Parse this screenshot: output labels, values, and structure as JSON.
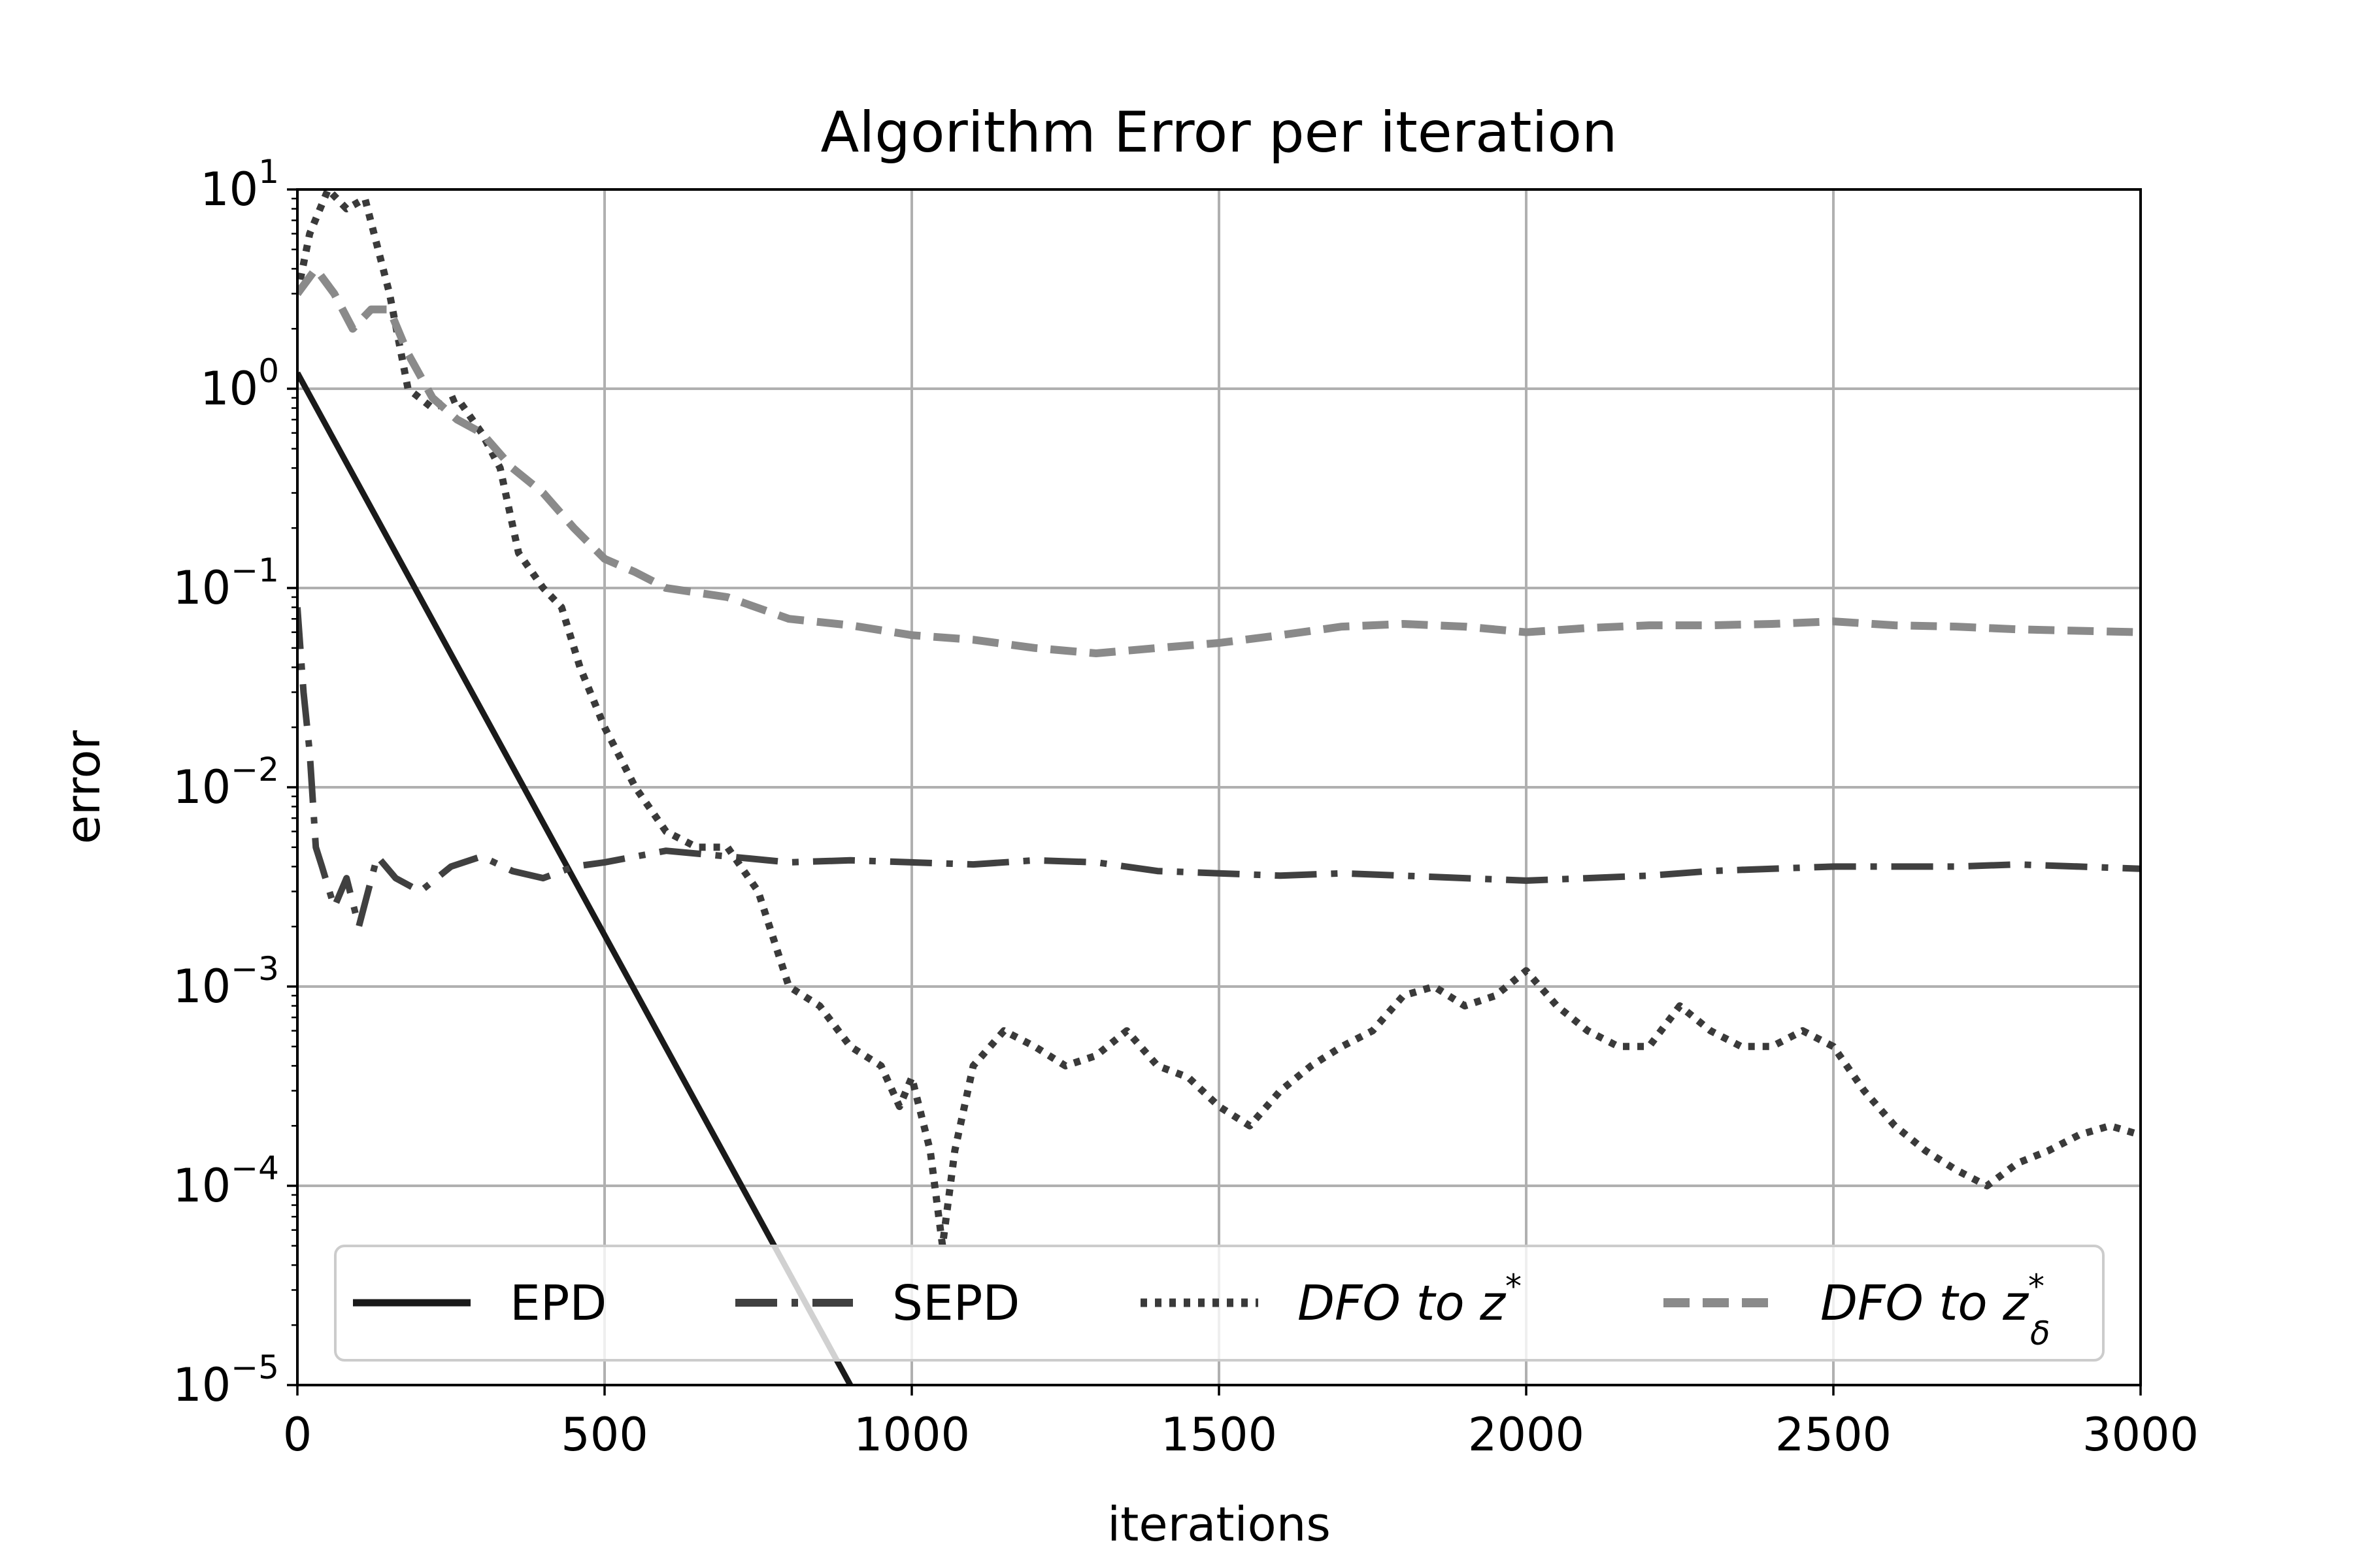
{
  "chart_data": {
    "type": "line",
    "title": "Algorithm Error per iteration",
    "xlabel": "iterations",
    "ylabel": "error",
    "xlim": [
      0,
      3000
    ],
    "ylim": [
      1e-05,
      10
    ],
    "yscale": "log",
    "grid": true,
    "legend_position": "bottom",
    "x_ticks": [
      "0",
      "500",
      "1000",
      "1500",
      "2000",
      "2500",
      "3000"
    ],
    "y_ticks": [
      {
        "base": "10",
        "exp": "1"
      },
      {
        "base": "10",
        "exp": "0"
      },
      {
        "base": "10",
        "exp": "−1"
      },
      {
        "base": "10",
        "exp": "−2"
      },
      {
        "base": "10",
        "exp": "−3"
      },
      {
        "base": "10",
        "exp": "−4"
      },
      {
        "base": "10",
        "exp": "−5"
      }
    ],
    "series": [
      {
        "name": "EPD",
        "style": "solid",
        "color": "#1a1a1a",
        "x": [
          0,
          900
        ],
        "y": [
          1.2,
          1e-05
        ]
      },
      {
        "name": "SEPD",
        "style": "dashdot",
        "color": "#404040",
        "x": [
          0,
          10,
          20,
          30,
          40,
          60,
          80,
          100,
          130,
          160,
          200,
          250,
          300,
          350,
          400,
          450,
          500,
          600,
          700,
          800,
          900,
          1000,
          1100,
          1200,
          1300,
          1400,
          1500,
          1600,
          1700,
          1800,
          1900,
          2000,
          2100,
          2200,
          2300,
          2400,
          2500,
          2600,
          2700,
          2800,
          2900,
          3000
        ],
        "y": [
          0.08,
          0.03,
          0.015,
          0.005,
          0.004,
          0.0025,
          0.0035,
          0.002,
          0.0045,
          0.0035,
          0.003,
          0.004,
          0.0045,
          0.0038,
          0.0035,
          0.004,
          0.0042,
          0.0048,
          0.0045,
          0.0042,
          0.0043,
          0.0042,
          0.0041,
          0.0043,
          0.0042,
          0.0038,
          0.0037,
          0.0036,
          0.0037,
          0.0036,
          0.0035,
          0.0034,
          0.0035,
          0.0036,
          0.0038,
          0.0039,
          0.004,
          0.004,
          0.004,
          0.0041,
          0.004,
          0.0039
        ]
      },
      {
        "name": "DFO to z*",
        "style": "dotted",
        "color": "#3a3a3a",
        "x": [
          0,
          20,
          50,
          80,
          110,
          150,
          180,
          220,
          260,
          300,
          330,
          360,
          400,
          430,
          460,
          500,
          550,
          600,
          650,
          700,
          750,
          800,
          850,
          900,
          950,
          980,
          1000,
          1030,
          1050,
          1070,
          1100,
          1150,
          1200,
          1250,
          1300,
          1350,
          1400,
          1450,
          1500,
          1550,
          1600,
          1650,
          1700,
          1750,
          1800,
          1850,
          1900,
          1950,
          2000,
          2050,
          2100,
          2150,
          2200,
          2250,
          2300,
          2350,
          2400,
          2450,
          2500,
          2550,
          2600,
          2650,
          2700,
          2750,
          2800,
          2850,
          2900,
          2950,
          3000
        ],
        "y": [
          3,
          6,
          10,
          8,
          9,
          3,
          1,
          0.8,
          0.9,
          0.6,
          0.4,
          0.15,
          0.1,
          0.08,
          0.04,
          0.02,
          0.01,
          0.006,
          0.005,
          0.005,
          0.003,
          0.001,
          0.0008,
          0.0005,
          0.0004,
          0.00025,
          0.00035,
          0.00015,
          5e-05,
          0.00015,
          0.0004,
          0.0006,
          0.0005,
          0.0004,
          0.00045,
          0.0006,
          0.0004,
          0.00035,
          0.00025,
          0.0002,
          0.0003,
          0.0004,
          0.0005,
          0.0006,
          0.0009,
          0.001,
          0.0008,
          0.0009,
          0.0012,
          0.0008,
          0.0006,
          0.0005,
          0.0005,
          0.0008,
          0.0006,
          0.0005,
          0.0005,
          0.0006,
          0.0005,
          0.0003,
          0.0002,
          0.00015,
          0.00012,
          0.0001,
          0.00013,
          0.00015,
          0.00018,
          0.0002,
          0.00018
        ]
      },
      {
        "name": "DFO to z*_δ",
        "style": "dashed",
        "color": "#8a8a8a",
        "x": [
          0,
          30,
          60,
          90,
          120,
          150,
          180,
          220,
          260,
          300,
          350,
          400,
          450,
          500,
          550,
          600,
          700,
          800,
          900,
          1000,
          1100,
          1200,
          1300,
          1400,
          1500,
          1600,
          1700,
          1800,
          1900,
          2000,
          2100,
          2200,
          2300,
          2400,
          2500,
          2600,
          2700,
          2800,
          2900,
          3000
        ],
        "y": [
          3,
          4,
          3,
          2,
          2.5,
          2.5,
          1.5,
          0.9,
          0.7,
          0.6,
          0.4,
          0.3,
          0.2,
          0.14,
          0.12,
          0.1,
          0.09,
          0.07,
          0.065,
          0.058,
          0.055,
          0.05,
          0.047,
          0.05,
          0.053,
          0.058,
          0.064,
          0.066,
          0.064,
          0.06,
          0.063,
          0.065,
          0.065,
          0.066,
          0.068,
          0.065,
          0.064,
          0.062,
          0.061,
          0.06
        ]
      }
    ]
  }
}
